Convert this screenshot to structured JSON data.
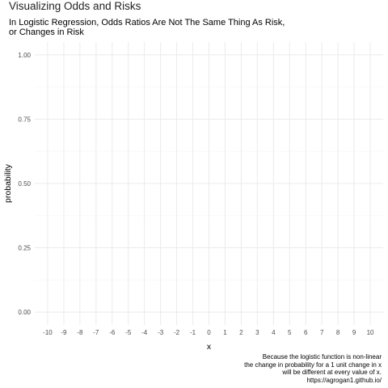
{
  "chart_data": {
    "type": "line",
    "title": "Visualizing Odds and Risks",
    "subtitle": [
      "In Logistic Regression, Odds Ratios Are Not The Same Thing As Risk,",
      "or Changes in Risk"
    ],
    "xlabel": "x",
    "ylabel": "probability",
    "x_ticks": [
      -10,
      -9,
      -8,
      -7,
      -6,
      -5,
      -4,
      -3,
      -2,
      -1,
      0,
      1,
      2,
      3,
      4,
      5,
      6,
      7,
      8,
      9,
      10
    ],
    "y_ticks": [
      "0.00",
      "0.25",
      "0.50",
      "0.75",
      "1.00"
    ],
    "y_tick_values": [
      0,
      0.25,
      0.5,
      0.75,
      1.0
    ],
    "xlim": [
      -10.8,
      10.8
    ],
    "ylim": [
      -0.05,
      1.05
    ],
    "grid": true,
    "series": [],
    "caption": [
      "Because the logistic function is non-linear",
      "the change in probability for a 1 unit change in x",
      "will be different at every value of x.",
      "https://agrogan1.github.io/"
    ]
  },
  "colors": {
    "grid_major": "#ebebeb",
    "grid_minor": "#f5f5f5",
    "tick_text": "#4d4d4d"
  }
}
